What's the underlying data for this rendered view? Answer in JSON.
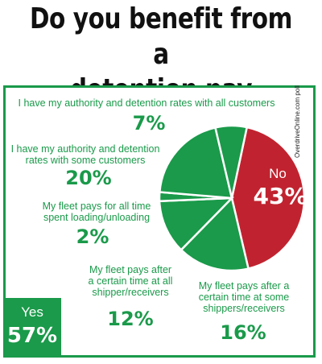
{
  "title_line1": "Do you benefit from a",
  "title_line2": "detention pay program?",
  "source": "OverdriveOnline.com poll",
  "colors": {
    "no": "#c0232f",
    "yes": "#1a9a4a",
    "white": "#ffffff"
  },
  "chart_data": {
    "type": "pie",
    "title": "Do you benefit from a detention pay program?",
    "slices": [
      {
        "label": "No",
        "value": 43,
        "display": "43%",
        "group": "no"
      },
      {
        "label": "My fleet pays after a certain time at some shippers/receivers",
        "value": 16,
        "display": "16%",
        "group": "yes"
      },
      {
        "label": "My fleet pays after a certain time at all shipper/receivers",
        "value": 12,
        "display": "12%",
        "group": "yes"
      },
      {
        "label": "My fleet pays for all time spent loading/unloading",
        "value": 2,
        "display": "2%",
        "group": "yes"
      },
      {
        "label": "I have my authority and detention rates with some customers",
        "value": 20,
        "display": "20%",
        "group": "yes"
      },
      {
        "label": "I have my authority and detention rates with all customers",
        "value": 7,
        "display": "7%",
        "group": "yes"
      }
    ],
    "groups": {
      "no": {
        "label": "No",
        "value": "43%"
      },
      "yes": {
        "label": "Yes",
        "value": "57%"
      }
    },
    "labels": {
      "all_customers": {
        "l1": "I have my authority and detention rates with all customers",
        "pct": "7%"
      },
      "some_customers": {
        "l1": "I have my authority and detention",
        "l2": "rates with some customers",
        "pct": "20%"
      },
      "all_time": {
        "l1": "My fleet pays for all time",
        "l2": "spent loading/unloading",
        "pct": "2%"
      },
      "all_shippers": {
        "l1": "My fleet pays after",
        "l2": "a certain time at all",
        "l3": "shipper/receivers",
        "pct": "12%"
      },
      "some_shippers": {
        "l1": "My fleet pays after a",
        "l2": "certain time at some",
        "l3": "shippers/receivers",
        "pct": "16%"
      }
    }
  }
}
